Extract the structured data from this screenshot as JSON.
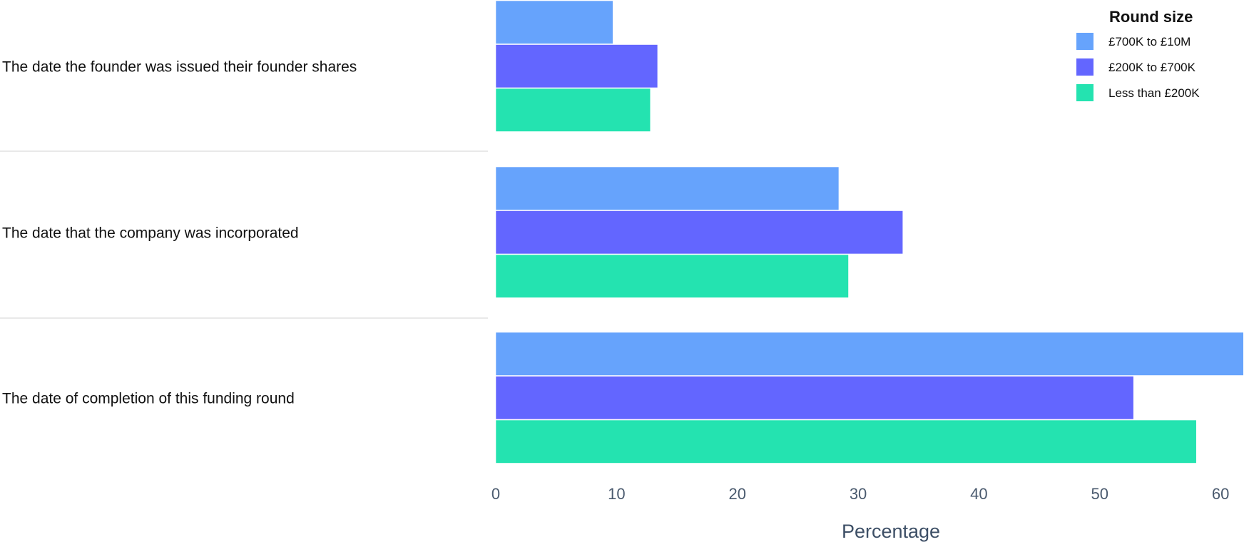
{
  "chart_data": {
    "type": "bar",
    "orientation": "horizontal",
    "categories": [
      "The date the founder was issued their founder shares",
      "The date that the company was incorporated",
      "The date of completion of this funding round"
    ],
    "series": [
      {
        "name": "£700K to £10M",
        "color": "#66a3fc",
        "values": [
          9.7,
          28.4,
          61.9
        ]
      },
      {
        "name": "£200K to £700K",
        "color": "#6366ff",
        "values": [
          13.4,
          33.7,
          52.8
        ]
      },
      {
        "name": "Less than £200K",
        "color": "#24e3b0",
        "values": [
          12.8,
          29.2,
          58.0
        ]
      }
    ],
    "xlabel": "Percentage",
    "xticks": [
      0,
      10,
      20,
      30,
      40,
      50,
      60
    ],
    "xlim": [
      0,
      62
    ],
    "legend": {
      "title": "Round size",
      "placement": "top-right"
    },
    "grid": false
  }
}
